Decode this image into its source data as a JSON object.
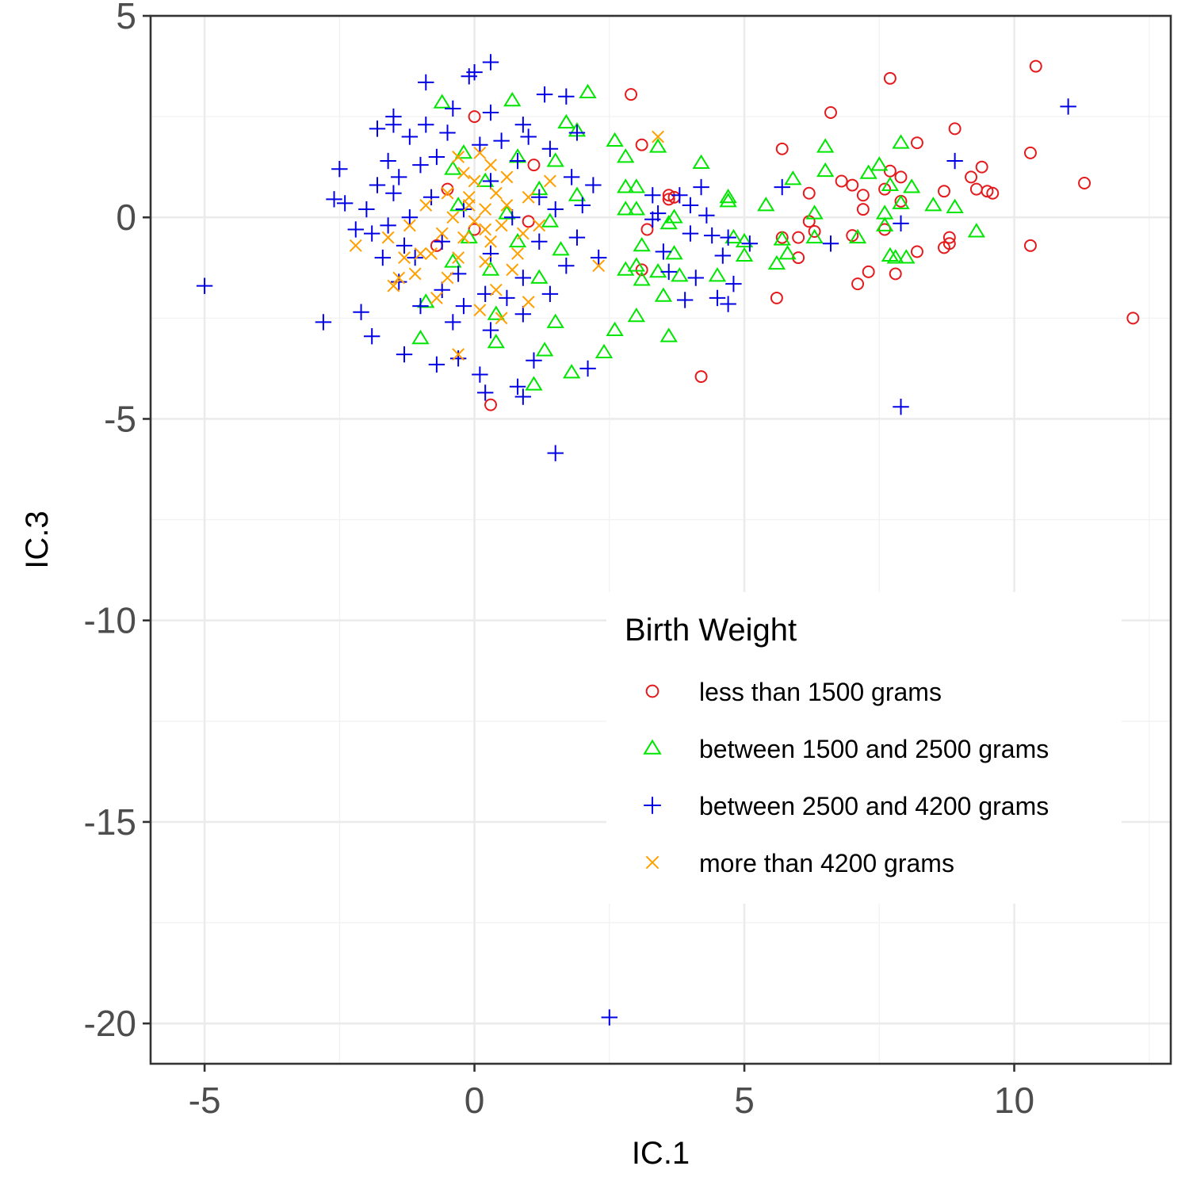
{
  "chart_data": {
    "type": "scatter",
    "title": "",
    "xlabel": "IC.1",
    "ylabel": "IC.3",
    "xlim": [
      -6,
      12.9
    ],
    "ylim": [
      -21,
      5
    ],
    "x_ticks": [
      -5,
      0,
      5,
      10
    ],
    "y_ticks": [
      5,
      0,
      -5,
      -10,
      -15,
      -20
    ],
    "x_tick_labels": [
      "-5",
      "0",
      "5",
      "10"
    ],
    "y_tick_labels": [
      "5",
      "0",
      "-5",
      "-10",
      "-15",
      "-20"
    ],
    "grid": true,
    "legend": {
      "title": "Birth Weight",
      "placement": "inside-right"
    },
    "series": [
      {
        "name": "less than 1500 grams",
        "marker": "circle",
        "color": "#e41a1c",
        "points": [
          [
            10.4,
            3.75
          ],
          [
            7.7,
            3.45
          ],
          [
            2.9,
            3.05
          ],
          [
            6.6,
            2.6
          ],
          [
            8.9,
            2.2
          ],
          [
            8.2,
            1.85
          ],
          [
            3.1,
            1.8
          ],
          [
            5.7,
            1.7
          ],
          [
            10.3,
            1.6
          ],
          [
            7.7,
            1.15
          ],
          [
            9.4,
            1.25
          ],
          [
            7.9,
            1.0
          ],
          [
            9.2,
            1.0
          ],
          [
            6.8,
            0.9
          ],
          [
            7.0,
            0.8
          ],
          [
            11.3,
            0.85
          ],
          [
            9.3,
            0.7
          ],
          [
            9.5,
            0.65
          ],
          [
            9.6,
            0.6
          ],
          [
            8.7,
            0.65
          ],
          [
            6.2,
            0.6
          ],
          [
            7.6,
            0.7
          ],
          [
            7.2,
            0.55
          ],
          [
            3.7,
            0.5
          ],
          [
            3.6,
            0.55
          ],
          [
            3.6,
            0.45
          ],
          [
            7.9,
            0.4
          ],
          [
            7.2,
            0.2
          ],
          [
            6.2,
            -0.1
          ],
          [
            3.2,
            -0.3
          ],
          [
            6.3,
            -0.35
          ],
          [
            7.6,
            -0.3
          ],
          [
            7.0,
            -0.45
          ],
          [
            5.7,
            -0.5
          ],
          [
            6.0,
            -0.5
          ],
          [
            8.8,
            -0.5
          ],
          [
            8.8,
            -0.65
          ],
          [
            8.7,
            -0.75
          ],
          [
            10.3,
            -0.7
          ],
          [
            8.2,
            -0.85
          ],
          [
            6.0,
            -1.0
          ],
          [
            3.1,
            -1.3
          ],
          [
            7.3,
            -1.35
          ],
          [
            7.8,
            -1.4
          ],
          [
            7.1,
            -1.65
          ],
          [
            5.6,
            -2.0
          ],
          [
            12.2,
            -2.5
          ],
          [
            4.2,
            -3.95
          ],
          [
            0.3,
            -4.65
          ],
          [
            0.0,
            2.5
          ],
          [
            1.1,
            1.3
          ],
          [
            -0.5,
            0.7
          ],
          [
            0.0,
            -0.3
          ],
          [
            -0.7,
            -0.7
          ],
          [
            1.0,
            -0.1
          ]
        ]
      },
      {
        "name": "between 1500 and 2500 grams",
        "marker": "triangle",
        "color": "#00e600",
        "points": [
          [
            2.1,
            3.1
          ],
          [
            7.9,
            1.85
          ],
          [
            6.5,
            1.75
          ],
          [
            3.4,
            1.75
          ],
          [
            2.6,
            1.9
          ],
          [
            2.8,
            1.5
          ],
          [
            4.2,
            1.35
          ],
          [
            7.5,
            1.3
          ],
          [
            7.3,
            1.1
          ],
          [
            6.5,
            1.15
          ],
          [
            5.9,
            0.95
          ],
          [
            7.7,
            0.8
          ],
          [
            8.1,
            0.75
          ],
          [
            2.8,
            0.75
          ],
          [
            3.0,
            0.75
          ],
          [
            4.7,
            0.5
          ],
          [
            4.7,
            0.4
          ],
          [
            5.4,
            0.3
          ],
          [
            8.5,
            0.3
          ],
          [
            7.9,
            0.35
          ],
          [
            8.9,
            0.25
          ],
          [
            6.3,
            0.1
          ],
          [
            7.6,
            0.1
          ],
          [
            2.8,
            0.2
          ],
          [
            3.0,
            0.2
          ],
          [
            3.7,
            0.0
          ],
          [
            3.6,
            -0.15
          ],
          [
            9.3,
            -0.35
          ],
          [
            7.6,
            -0.2
          ],
          [
            4.8,
            -0.5
          ],
          [
            5.0,
            -0.6
          ],
          [
            5.7,
            -0.55
          ],
          [
            6.3,
            -0.5
          ],
          [
            7.1,
            -0.5
          ],
          [
            3.1,
            -0.7
          ],
          [
            3.7,
            -0.9
          ],
          [
            5.0,
            -0.95
          ],
          [
            5.8,
            -0.9
          ],
          [
            7.7,
            -0.95
          ],
          [
            7.8,
            -1.0
          ],
          [
            8.0,
            -1.0
          ],
          [
            5.6,
            -1.15
          ],
          [
            3.0,
            -1.2
          ],
          [
            2.8,
            -1.3
          ],
          [
            3.4,
            -1.35
          ],
          [
            3.8,
            -1.45
          ],
          [
            4.5,
            -1.45
          ],
          [
            3.1,
            -1.55
          ],
          [
            3.5,
            -1.95
          ],
          [
            3.0,
            -2.45
          ],
          [
            2.6,
            -2.8
          ],
          [
            3.6,
            -2.95
          ],
          [
            2.4,
            -3.35
          ],
          [
            1.8,
            -3.85
          ],
          [
            1.1,
            -4.15
          ],
          [
            0.7,
            2.9
          ],
          [
            -0.6,
            2.85
          ],
          [
            1.7,
            2.35
          ],
          [
            1.9,
            2.15
          ],
          [
            -0.2,
            1.6
          ],
          [
            0.8,
            1.5
          ],
          [
            1.5,
            1.4
          ],
          [
            -0.4,
            1.2
          ],
          [
            0.2,
            0.9
          ],
          [
            1.2,
            0.7
          ],
          [
            1.9,
            0.55
          ],
          [
            -0.3,
            0.3
          ],
          [
            0.6,
            0.1
          ],
          [
            1.4,
            -0.1
          ],
          [
            -0.1,
            -0.5
          ],
          [
            0.8,
            -0.6
          ],
          [
            1.6,
            -0.8
          ],
          [
            -0.4,
            -1.1
          ],
          [
            0.3,
            -1.3
          ],
          [
            1.2,
            -1.5
          ],
          [
            -0.9,
            -2.1
          ],
          [
            0.4,
            -2.4
          ],
          [
            1.5,
            -2.6
          ],
          [
            -1.0,
            -3.0
          ],
          [
            0.4,
            -3.1
          ],
          [
            1.3,
            -3.3
          ]
        ]
      },
      {
        "name": "between 2500 and 4200 grams",
        "marker": "plus",
        "color": "#0000e6",
        "points": [
          [
            0.3,
            3.85
          ],
          [
            0.0,
            3.6
          ],
          [
            -0.1,
            3.5
          ],
          [
            -0.9,
            3.35
          ],
          [
            1.3,
            3.05
          ],
          [
            1.7,
            3.0
          ],
          [
            11.0,
            2.75
          ],
          [
            -1.5,
            2.5
          ],
          [
            -1.5,
            2.3
          ],
          [
            -1.8,
            2.2
          ],
          [
            1.9,
            2.1
          ],
          [
            8.9,
            1.4
          ],
          [
            -2.5,
            1.2
          ],
          [
            -2.6,
            0.45
          ],
          [
            -2.4,
            0.35
          ],
          [
            4.2,
            0.75
          ],
          [
            5.7,
            0.75
          ],
          [
            3.3,
            0.55
          ],
          [
            3.8,
            0.55
          ],
          [
            4.0,
            0.3
          ],
          [
            3.4,
            0.1
          ],
          [
            4.3,
            0.05
          ],
          [
            3.3,
            -0.05
          ],
          [
            7.9,
            -0.15
          ],
          [
            4.0,
            -0.4
          ],
          [
            4.4,
            -0.45
          ],
          [
            4.7,
            -0.5
          ],
          [
            5.1,
            -0.65
          ],
          [
            6.6,
            -0.65
          ],
          [
            3.5,
            -0.85
          ],
          [
            4.6,
            -0.95
          ],
          [
            3.6,
            -1.35
          ],
          [
            4.1,
            -1.5
          ],
          [
            4.8,
            -1.65
          ],
          [
            3.9,
            -2.05
          ],
          [
            4.5,
            -2.0
          ],
          [
            4.7,
            -2.15
          ],
          [
            -5.0,
            -1.7
          ],
          [
            -2.8,
            -2.6
          ],
          [
            -2.1,
            -2.35
          ],
          [
            -1.9,
            -2.95
          ],
          [
            -1.3,
            -3.4
          ],
          [
            -0.7,
            -3.65
          ],
          [
            -0.3,
            -3.5
          ],
          [
            0.1,
            -3.9
          ],
          [
            0.2,
            -4.35
          ],
          [
            0.8,
            -4.2
          ],
          [
            0.9,
            -4.45
          ],
          [
            2.1,
            -3.75
          ],
          [
            1.1,
            -3.55
          ],
          [
            1.5,
            -5.85
          ],
          [
            7.9,
            -4.7
          ],
          [
            2.5,
            -19.85
          ],
          [
            -1.2,
            2.0
          ],
          [
            -1.6,
            1.4
          ],
          [
            -1.8,
            0.8
          ],
          [
            -2.0,
            0.2
          ],
          [
            -1.9,
            -0.4
          ],
          [
            -1.7,
            -1.0
          ],
          [
            -1.4,
            -1.6
          ],
          [
            -1.0,
            -2.2
          ],
          [
            -0.4,
            -2.6
          ],
          [
            0.3,
            -2.8
          ],
          [
            0.9,
            -2.4
          ],
          [
            1.4,
            -1.9
          ],
          [
            1.7,
            -1.2
          ],
          [
            1.9,
            -0.5
          ],
          [
            2.0,
            0.3
          ],
          [
            1.8,
            1.0
          ],
          [
            1.4,
            1.7
          ],
          [
            0.9,
            2.3
          ],
          [
            0.3,
            2.6
          ],
          [
            -0.4,
            2.7
          ],
          [
            -0.9,
            2.3
          ],
          [
            -1.4,
            1.0
          ],
          [
            -1.2,
            0.0
          ],
          [
            -1.1,
            -1.0
          ],
          [
            -0.6,
            -1.8
          ],
          [
            0.2,
            -1.9
          ],
          [
            0.9,
            -1.5
          ],
          [
            1.2,
            -0.6
          ],
          [
            1.2,
            0.5
          ],
          [
            0.8,
            1.4
          ],
          [
            0.1,
            1.8
          ],
          [
            -0.7,
            1.5
          ],
          [
            -0.8,
            0.5
          ],
          [
            -0.6,
            -0.6
          ],
          [
            0.3,
            -0.9
          ],
          [
            0.7,
            0.0
          ],
          [
            0.3,
            0.9
          ],
          [
            -0.2,
            0.2
          ],
          [
            -1.6,
            -0.2
          ],
          [
            -1.3,
            -0.7
          ],
          [
            -1.5,
            0.6
          ],
          [
            -1.0,
            1.3
          ],
          [
            -0.3,
            -1.4
          ],
          [
            0.6,
            -2.0
          ],
          [
            1.5,
            0.2
          ],
          [
            0.5,
            1.9
          ],
          [
            -0.2,
            -2.2
          ],
          [
            -2.2,
            -0.3
          ],
          [
            2.3,
            -1.0
          ],
          [
            2.2,
            0.8
          ],
          [
            -0.5,
            2.1
          ],
          [
            1.0,
            2.0
          ]
        ]
      },
      {
        "name": "more than 4200 grams",
        "marker": "x",
        "color": "#ff9f00",
        "points": [
          [
            3.4,
            2.0
          ],
          [
            -2.2,
            -0.7
          ],
          [
            -1.5,
            -1.7
          ],
          [
            -1.4,
            -1.5
          ],
          [
            -1.0,
            -0.9
          ],
          [
            -0.3,
            -3.4
          ],
          [
            0.1,
            -2.3
          ],
          [
            0.5,
            -2.5
          ],
          [
            1.0,
            -2.1
          ],
          [
            2.3,
            -1.2
          ],
          [
            -0.2,
            1.1
          ],
          [
            0.3,
            1.3
          ],
          [
            0.0,
            0.9
          ],
          [
            -0.5,
            0.6
          ],
          [
            0.4,
            0.6
          ],
          [
            -0.1,
            0.3
          ],
          [
            0.2,
            0.2
          ],
          [
            0.6,
            0.3
          ],
          [
            -0.4,
            0.0
          ],
          [
            0.0,
            -0.1
          ],
          [
            0.5,
            -0.2
          ],
          [
            -0.6,
            -0.4
          ],
          [
            -0.2,
            -0.5
          ],
          [
            0.3,
            -0.6
          ],
          [
            -0.8,
            -0.9
          ],
          [
            -0.3,
            -1.0
          ],
          [
            0.2,
            -1.1
          ],
          [
            -1.1,
            -1.4
          ],
          [
            -0.5,
            -1.5
          ],
          [
            0.8,
            -0.9
          ],
          [
            1.0,
            0.5
          ],
          [
            0.9,
            -0.4
          ],
          [
            -1.2,
            -0.2
          ],
          [
            -1.6,
            -0.5
          ],
          [
            -0.9,
            0.3
          ],
          [
            0.1,
            1.6
          ],
          [
            -0.3,
            1.5
          ],
          [
            0.6,
            1.0
          ],
          [
            1.2,
            -0.2
          ],
          [
            0.4,
            -1.8
          ],
          [
            -0.7,
            -2.0
          ],
          [
            1.4,
            0.9
          ],
          [
            -1.3,
            -1.0
          ],
          [
            0.7,
            -1.3
          ],
          [
            -0.1,
            0.5
          ],
          [
            0.2,
            -0.3
          ]
        ]
      }
    ]
  }
}
